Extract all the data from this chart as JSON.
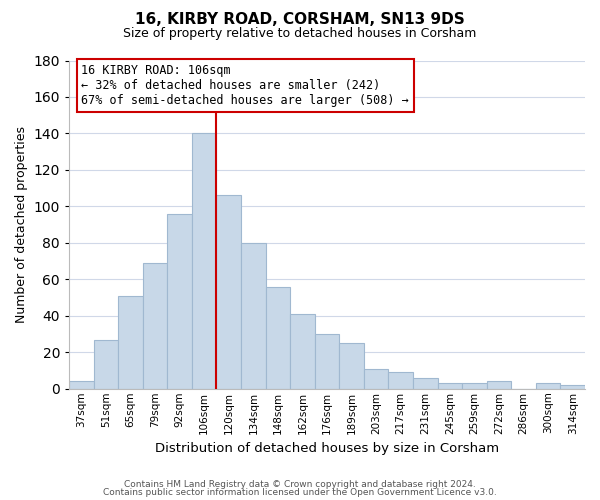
{
  "title": "16, KIRBY ROAD, CORSHAM, SN13 9DS",
  "subtitle": "Size of property relative to detached houses in Corsham",
  "xlabel": "Distribution of detached houses by size in Corsham",
  "ylabel": "Number of detached properties",
  "bar_labels": [
    "37sqm",
    "51sqm",
    "65sqm",
    "79sqm",
    "92sqm",
    "106sqm",
    "120sqm",
    "134sqm",
    "148sqm",
    "162sqm",
    "176sqm",
    "189sqm",
    "203sqm",
    "217sqm",
    "231sqm",
    "245sqm",
    "259sqm",
    "272sqm",
    "286sqm",
    "300sqm",
    "314sqm"
  ],
  "bar_values": [
    4,
    27,
    51,
    69,
    96,
    140,
    106,
    80,
    56,
    41,
    30,
    25,
    11,
    9,
    6,
    3,
    3,
    4,
    0,
    3,
    2
  ],
  "bar_color": "#c8d8e8",
  "bar_edge_color": "#a0b8d0",
  "vline_color": "#cc0000",
  "annotation_title": "16 KIRBY ROAD: 106sqm",
  "annotation_line1": "← 32% of detached houses are smaller (242)",
  "annotation_line2": "67% of semi-detached houses are larger (508) →",
  "annotation_box_edge": "#cc0000",
  "ylim": [
    0,
    180
  ],
  "yticks": [
    0,
    20,
    40,
    60,
    80,
    100,
    120,
    140,
    160,
    180
  ],
  "footer1": "Contains HM Land Registry data © Crown copyright and database right 2024.",
  "footer2": "Contains public sector information licensed under the Open Government Licence v3.0."
}
